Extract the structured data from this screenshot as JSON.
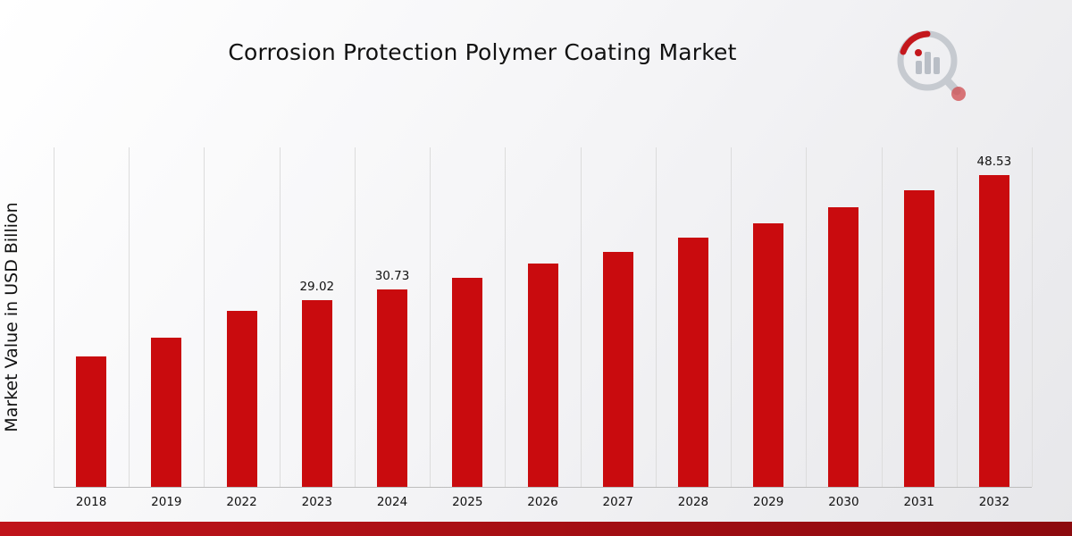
{
  "chart_data": {
    "type": "bar",
    "title": "Corrosion Protection Polymer Coating Market",
    "xlabel": "",
    "ylabel": "Market Value in USD Billion",
    "categories": [
      "2018",
      "2019",
      "2022",
      "2023",
      "2024",
      "2025",
      "2026",
      "2027",
      "2028",
      "2029",
      "2030",
      "2031",
      "2032"
    ],
    "values": [
      20.3,
      23.2,
      27.4,
      29.02,
      30.73,
      32.5,
      34.7,
      36.6,
      38.8,
      41.0,
      43.5,
      46.2,
      48.53
    ],
    "data_labels": {
      "2023": "29.02",
      "2024": "30.73",
      "2032": "48.53"
    },
    "bar_color": "#c90b0e",
    "ylim": [
      0,
      52.8
    ],
    "grid": "vertical-only",
    "legend": "none"
  },
  "colors": {
    "footer_bar": "#a50d12",
    "gridline": "#dcdcdc",
    "background_start": "#ffffff",
    "background_end": "#e7e7ea"
  },
  "logo": {
    "name": "market-research-brand-logo"
  }
}
